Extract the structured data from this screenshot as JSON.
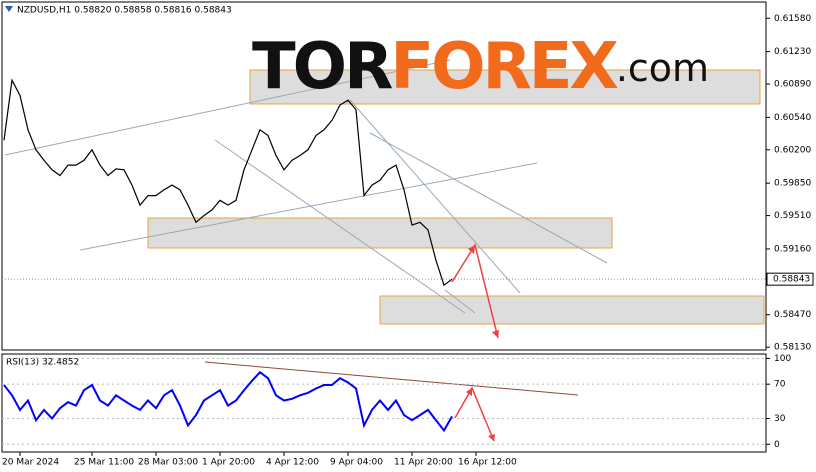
{
  "chart_data": [
    {
      "type": "line",
      "title": "NZDUSD,H1 0.58820 0.58858 0.58816 0.58843",
      "watermark": [
        "TOR",
        "FOREX",
        ".com"
      ],
      "color": "#000000",
      "values": [
        0.603,
        0.6093,
        0.6077,
        0.6041,
        0.602,
        0.6009,
        0.5999,
        0.5993,
        0.6004,
        0.6004,
        0.6009,
        0.602,
        0.6004,
        0.5993,
        0.6,
        0.5999,
        0.5983,
        0.5962,
        0.5972,
        0.5972,
        0.5978,
        0.5983,
        0.5978,
        0.5962,
        0.5944,
        0.5951,
        0.5957,
        0.5967,
        0.5962,
        0.5967,
        0.5999,
        0.602,
        0.6041,
        0.6035,
        0.6014,
        0.5999,
        0.6009,
        0.6014,
        0.602,
        0.6035,
        0.6041,
        0.6051,
        0.6067,
        0.6072,
        0.6062,
        0.5972,
        0.5983,
        0.5988,
        0.5999,
        0.6004,
        0.5978,
        0.5941,
        0.5944,
        0.5936,
        0.5904,
        0.5878,
        0.58843,
        null,
        null,
        null
      ],
      "current_price": {
        "value": 0.58843,
        "label": "0.58843"
      },
      "ylim": [
        0.581,
        0.6174
      ],
      "yticks": [
        {
          "value": 0.6158,
          "label": "0.61580"
        },
        {
          "value": 0.6123,
          "label": "0.61230"
        },
        {
          "value": 0.6089,
          "label": "0.60890"
        },
        {
          "value": 0.6054,
          "label": "0.60540"
        },
        {
          "value": 0.602,
          "label": "0.60200"
        },
        {
          "value": 0.5985,
          "label": "0.59850"
        },
        {
          "value": 0.5951,
          "label": "0.59510"
        },
        {
          "value": 0.5916,
          "label": "0.59160"
        },
        {
          "value": 0.5847,
          "label": "0.58470"
        },
        {
          "value": 0.5813,
          "label": "0.58130"
        }
      ]
    },
    {
      "type": "line",
      "title": "RSI(13) 32.4852",
      "color": "#0000ff",
      "categories": [
        null,
        null,
        "20 Mar 2024",
        null,
        null,
        null,
        null,
        null,
        null,
        null,
        null,
        "25 Mar 11:00",
        null,
        null,
        null,
        null,
        null,
        null,
        null,
        "28 Mar 03:00",
        null,
        null,
        null,
        null,
        null,
        null,
        null,
        "1 Apr 20:00",
        null,
        null,
        null,
        null,
        null,
        null,
        null,
        "4 Apr 12:00",
        null,
        null,
        null,
        null,
        null,
        null,
        null,
        "9 Apr 04:00",
        null,
        null,
        null,
        null,
        null,
        null,
        null,
        "11 Apr 20:00",
        null,
        null,
        null,
        null,
        null,
        null,
        null,
        "16 Apr 12:00"
      ],
      "values": [
        69,
        57,
        40,
        51,
        28,
        40,
        30,
        42,
        49,
        45,
        63,
        69,
        51,
        45,
        57,
        51,
        45,
        40,
        51,
        42,
        57,
        63,
        45,
        22,
        34,
        51,
        57,
        63,
        45,
        51,
        63,
        74,
        84,
        77,
        57,
        51,
        53,
        57,
        60,
        65,
        69,
        69,
        77,
        72,
        65,
        22,
        40,
        51,
        40,
        51,
        34,
        28,
        34,
        40,
        28,
        16,
        32.4852,
        null,
        null,
        null
      ],
      "ylim": [
        -9,
        104
      ],
      "yticks": [
        100,
        70,
        30,
        0
      ]
    }
  ]
}
